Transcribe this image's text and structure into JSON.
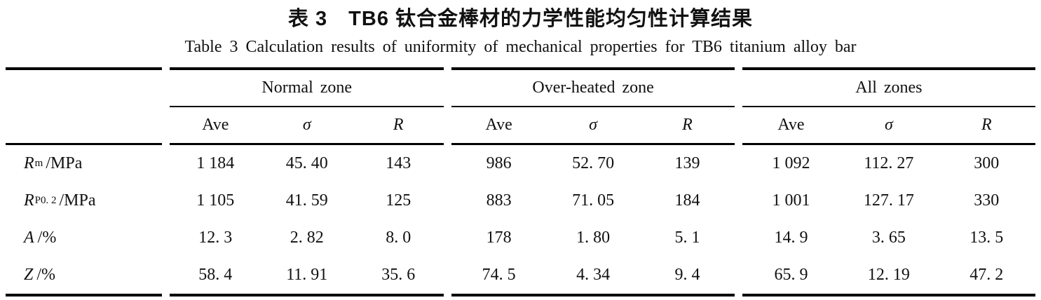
{
  "titles": {
    "zh": "表 3　TB6 钛合金棒材的力学性能均匀性计算结果",
    "en": "Table 3 Calculation results of uniformity of mechanical properties for TB6 titanium alloy bar"
  },
  "table": {
    "groups": [
      {
        "label": "Normal zone"
      },
      {
        "label": "Over-heated zone"
      },
      {
        "label": "All zones"
      }
    ],
    "subheaders": [
      "Ave",
      "σ",
      "R"
    ],
    "rows": [
      {
        "property": {
          "base": "R",
          "sub": "m",
          "unit": "/MPa"
        },
        "values": [
          "1 184",
          "45. 40",
          "143",
          "986",
          "52. 70",
          "139",
          "1 092",
          "112. 27",
          "300"
        ]
      },
      {
        "property": {
          "base": "R",
          "sub": "P0. 2",
          "unit": "/MPa"
        },
        "values": [
          "1 105",
          "41. 59",
          "125",
          "883",
          "71. 05",
          "184",
          "1 001",
          "127. 17",
          "330"
        ]
      },
      {
        "property": {
          "base": "A",
          "sub": "",
          "unit": "/%"
        },
        "values": [
          "12. 3",
          "2. 82",
          "8. 0",
          "178",
          "1. 80",
          "5. 1",
          "14. 9",
          "3. 65",
          "13. 5"
        ]
      },
      {
        "property": {
          "base": "Z",
          "sub": "",
          "unit": "/%"
        },
        "values": [
          "58. 4",
          "11. 91",
          "35. 6",
          "74. 5",
          "4. 34",
          "9. 4",
          "65. 9",
          "12. 19",
          "47. 2"
        ]
      }
    ]
  },
  "chart_data": {
    "type": "table",
    "title": "Table 3 Calculation results of uniformity of mechanical properties for TB6 titanium alloy bar",
    "column_groups": [
      "Normal zone",
      "Over-heated zone",
      "All zones"
    ],
    "columns_per_group": [
      "Ave",
      "σ",
      "R"
    ],
    "row_headers": [
      "Rm/MPa",
      "RP0.2/MPa",
      "A/%",
      "Z/%"
    ],
    "cells": [
      [
        "1 184",
        "45. 40",
        "143",
        "986",
        "52. 70",
        "139",
        "1 092",
        "112. 27",
        "300"
      ],
      [
        "1 105",
        "41. 59",
        "125",
        "883",
        "71. 05",
        "184",
        "1 001",
        "127. 17",
        "330"
      ],
      [
        "12. 3",
        "2. 82",
        "8. 0",
        "178",
        "1. 80",
        "5. 1",
        "14. 9",
        "3. 65",
        "13. 5"
      ],
      [
        "58. 4",
        "11. 91",
        "35. 6",
        "74. 5",
        "4. 34",
        "9. 4",
        "65. 9",
        "12. 19",
        "47. 2"
      ]
    ]
  }
}
